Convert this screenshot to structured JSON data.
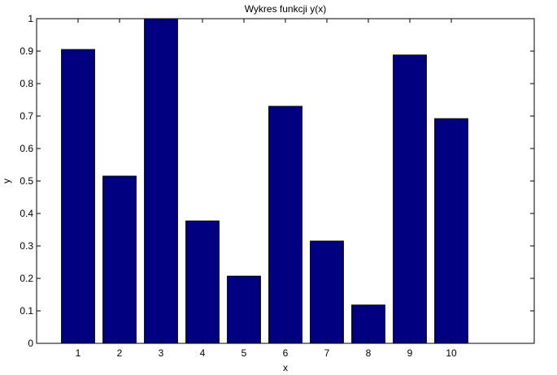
{
  "chart_data": {
    "type": "bar",
    "title": "Wykres funkcji y(x)",
    "xlabel": "x",
    "ylabel": "y",
    "categories": [
      "1",
      "2",
      "3",
      "4",
      "5",
      "6",
      "7",
      "8",
      "9",
      "10"
    ],
    "values": [
      0.905,
      0.515,
      1.0,
      0.377,
      0.207,
      0.73,
      0.315,
      0.118,
      0.888,
      0.692
    ],
    "ylim": [
      0,
      1
    ],
    "xlim": [
      0,
      12
    ],
    "yticks": [
      "0",
      "0.1",
      "0.2",
      "0.3",
      "0.4",
      "0.5",
      "0.6",
      "0.7",
      "0.8",
      "0.9",
      "1"
    ],
    "grid": false,
    "bar_color": "#000080",
    "bar_edge_color": "#000000"
  }
}
